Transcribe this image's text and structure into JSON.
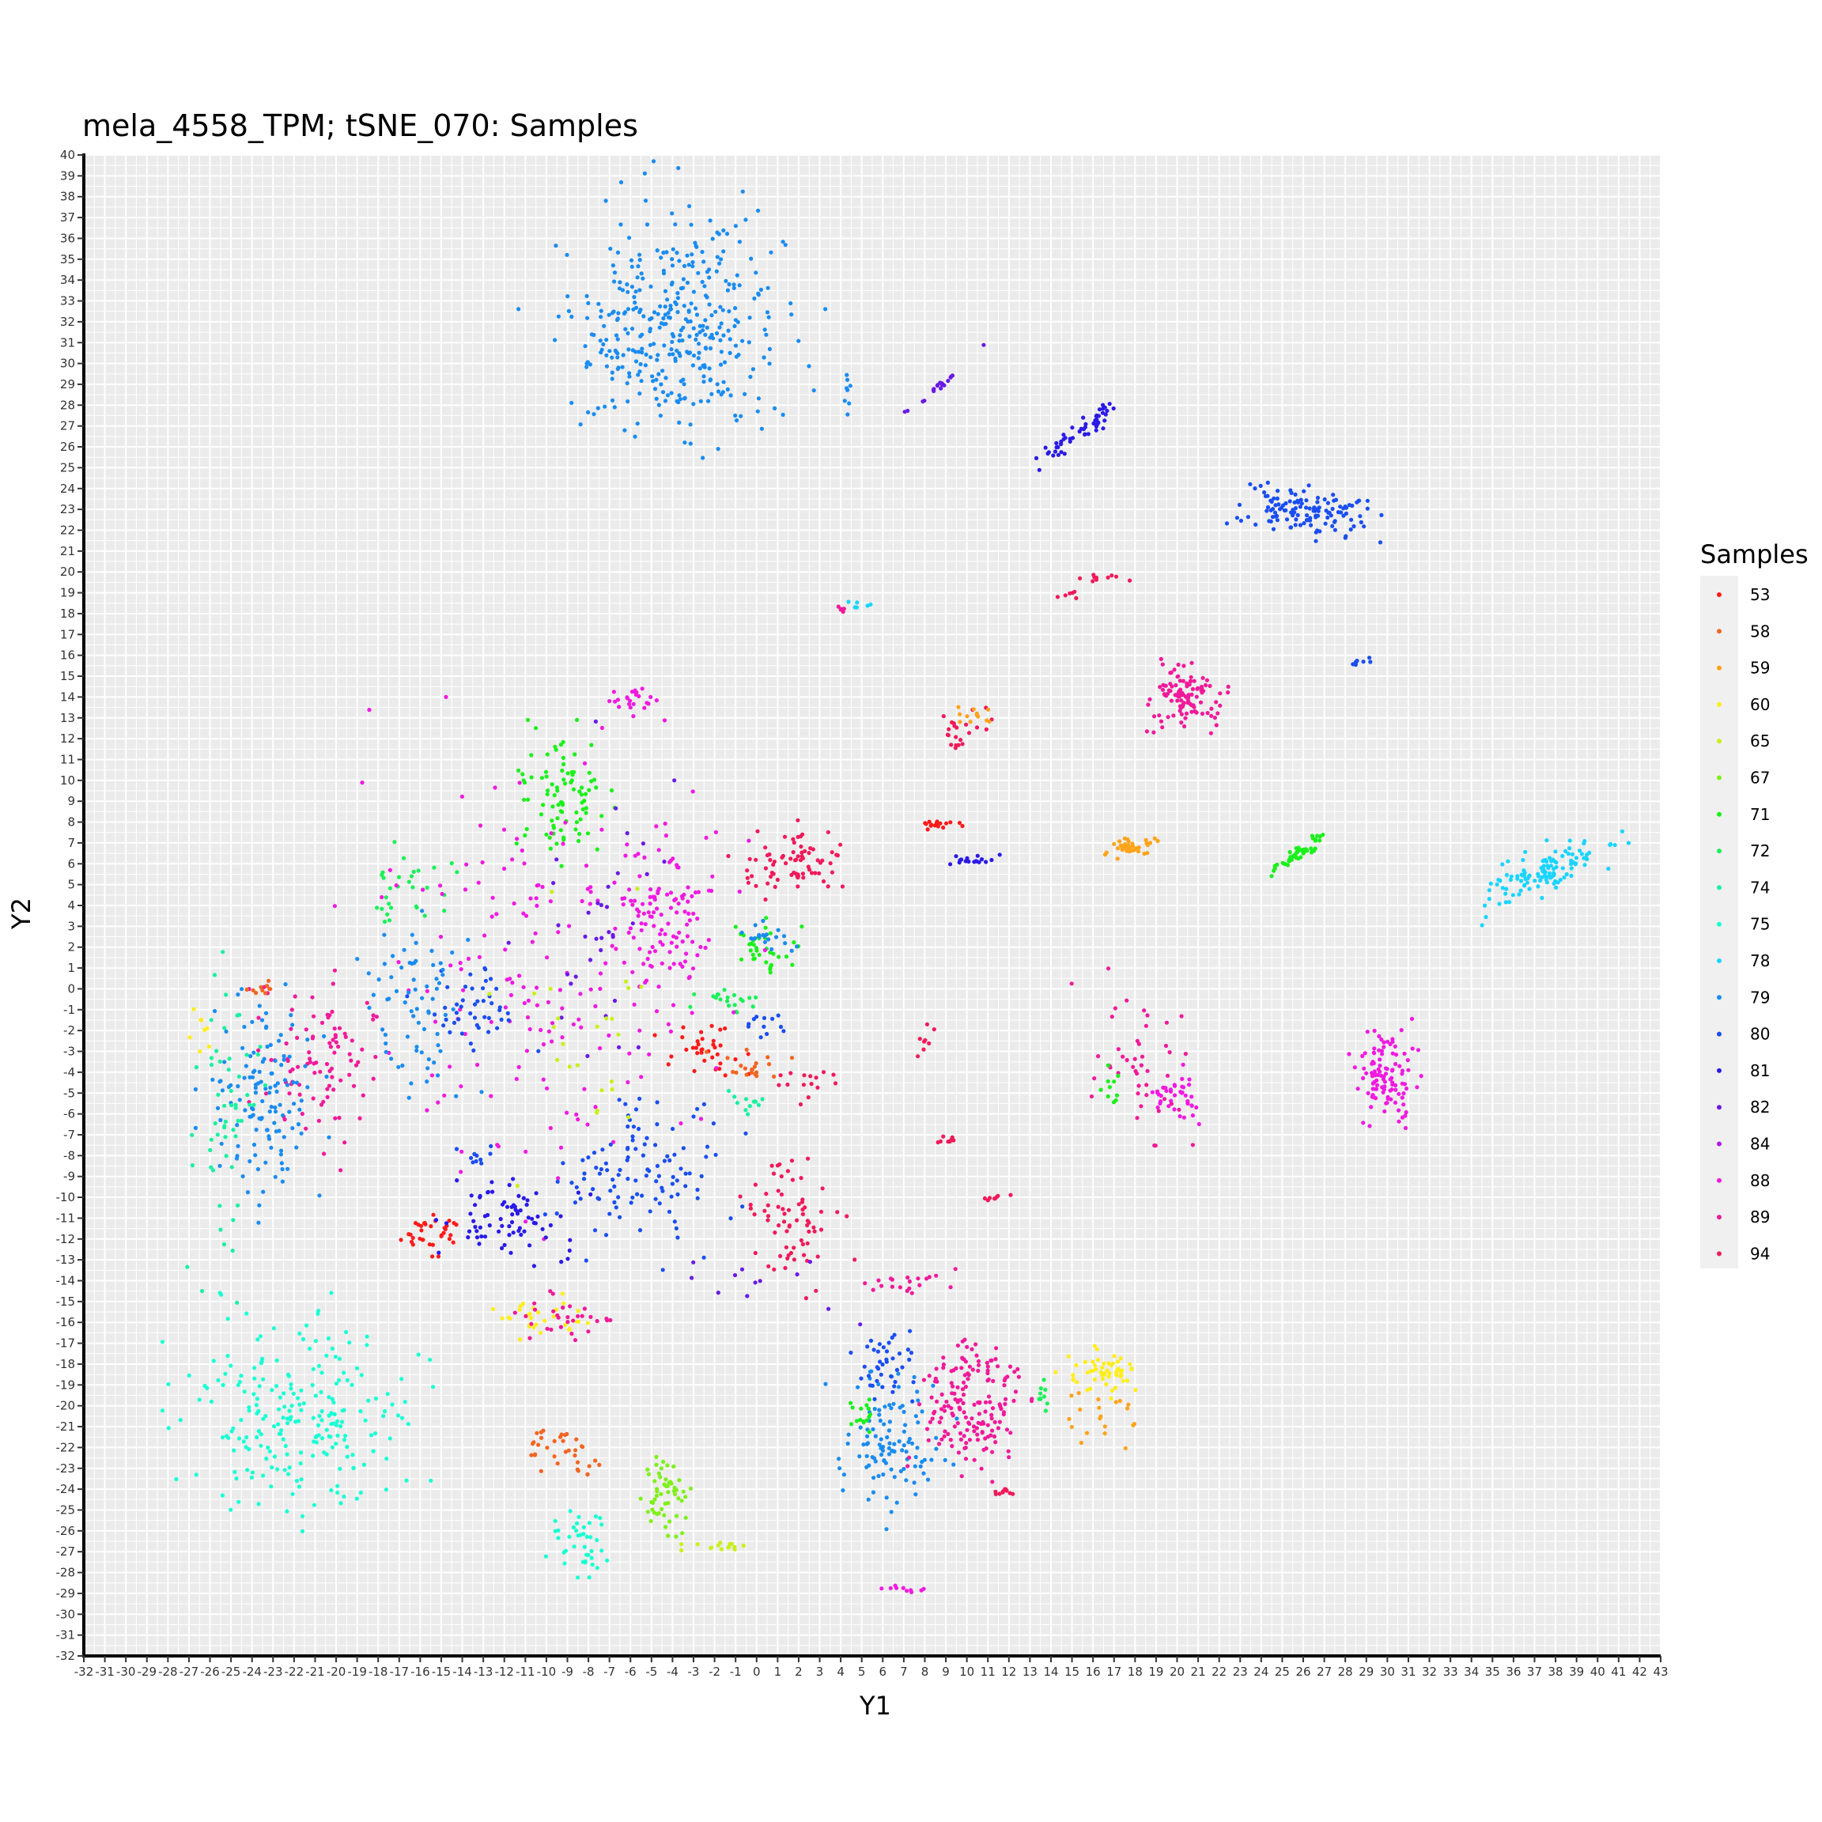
{
  "chart_data": {
    "type": "scatter",
    "title": "mela_4558_TPM; tSNE_070: Samples",
    "xlabel": "Y1",
    "ylabel": "Y2",
    "xlim": [
      -32,
      43
    ],
    "ylim": [
      -32,
      40
    ],
    "xticks": [
      -32,
      -31,
      -30,
      -29,
      -28,
      -27,
      -26,
      -25,
      -24,
      -23,
      -22,
      -21,
      -20,
      -19,
      -18,
      -17,
      -16,
      -15,
      -14,
      -13,
      -12,
      -11,
      -10,
      -9,
      -8,
      -7,
      -6,
      -5,
      -4,
      -3,
      -2,
      -1,
      0,
      1,
      2,
      3,
      4,
      5,
      6,
      7,
      8,
      9,
      10,
      11,
      12,
      13,
      14,
      15,
      16,
      17,
      18,
      19,
      20,
      21,
      22,
      23,
      24,
      25,
      26,
      27,
      28,
      29,
      30,
      31,
      32,
      33,
      34,
      35,
      36,
      37,
      38,
      39,
      40,
      41,
      42,
      43
    ],
    "yticks": [
      -32,
      -31,
      -30,
      -29,
      -28,
      -27,
      -26,
      -25,
      -24,
      -23,
      -22,
      -21,
      -20,
      -19,
      -18,
      -17,
      -16,
      -15,
      -14,
      -13,
      -12,
      -11,
      -10,
      -9,
      -8,
      -7,
      -6,
      -5,
      -4,
      -3,
      -2,
      -1,
      0,
      1,
      2,
      3,
      4,
      5,
      6,
      7,
      8,
      9,
      10,
      11,
      12,
      13,
      14,
      15,
      16,
      17,
      18,
      19,
      20,
      21,
      22,
      23,
      24,
      25,
      26,
      27,
      28,
      29,
      30,
      31,
      32,
      33,
      34,
      35,
      36,
      37,
      38,
      39,
      40
    ],
    "grid": true,
    "legend": {
      "title": "Samples",
      "position": "right",
      "entries": [
        {
          "label": "53",
          "color": "#ff1a1a"
        },
        {
          "label": "58",
          "color": "#f26522"
        },
        {
          "label": "59",
          "color": "#ffa31a"
        },
        {
          "label": "60",
          "color": "#ffee1a"
        },
        {
          "label": "65",
          "color": "#c8f01a"
        },
        {
          "label": "67",
          "color": "#7ff01a"
        },
        {
          "label": "71",
          "color": "#1af01a"
        },
        {
          "label": "72",
          "color": "#1af05a"
        },
        {
          "label": "74",
          "color": "#1af0a0"
        },
        {
          "label": "75",
          "color": "#1affd4"
        },
        {
          "label": "78",
          "color": "#1ad4ff"
        },
        {
          "label": "79",
          "color": "#1a8cf0"
        },
        {
          "label": "80",
          "color": "#1a4ef0"
        },
        {
          "label": "81",
          "color": "#2a1ae6"
        },
        {
          "label": "82",
          "color": "#6a1ae6"
        },
        {
          "label": "84",
          "color": "#b01ae6"
        },
        {
          "label": "88",
          "color": "#f01ae0"
        },
        {
          "label": "89",
          "color": "#f01a9a"
        },
        {
          "label": "94",
          "color": "#f01a5a"
        }
      ]
    },
    "clusters": [
      {
        "series": "79",
        "cx": -4,
        "cy": 32,
        "sx": 2.6,
        "sy": 2.5,
        "n": 380,
        "rot": -0.9
      },
      {
        "series": "79",
        "cx": -8,
        "cy": 30,
        "sx": 0.1,
        "sy": 0.1,
        "n": 4,
        "rot": 0
      },
      {
        "series": "79",
        "cx": 4.3,
        "cy": 28.5,
        "sx": 0.1,
        "sy": 0.6,
        "n": 8,
        "rot": 0
      },
      {
        "series": "82",
        "cx": 8.8,
        "cy": 29,
        "sx": 1.2,
        "sy": 0.12,
        "n": 20,
        "rot": 0.7
      },
      {
        "series": "81",
        "cx": 15.5,
        "cy": 26.8,
        "sx": 1.3,
        "sy": 0.2,
        "n": 55,
        "rot": 0.6
      },
      {
        "series": "80",
        "cx": 26,
        "cy": 23,
        "sx": 1.6,
        "sy": 0.6,
        "n": 130,
        "rot": -0.1
      },
      {
        "series": "94",
        "cx": 16.5,
        "cy": 19.7,
        "sx": 0.5,
        "sy": 0.1,
        "n": 10,
        "rot": 0
      },
      {
        "series": "94",
        "cx": 15,
        "cy": 19,
        "sx": 0.3,
        "sy": 0.1,
        "n": 6,
        "rot": 0
      },
      {
        "series": "89",
        "cx": 4.1,
        "cy": 18.2,
        "sx": 0.1,
        "sy": 0.1,
        "n": 5,
        "rot": 0
      },
      {
        "series": "78",
        "cx": 5,
        "cy": 18.4,
        "sx": 0.5,
        "sy": 0.1,
        "n": 6,
        "rot": 0
      },
      {
        "series": "80",
        "cx": 28.5,
        "cy": 15.6,
        "sx": 0.5,
        "sy": 0.1,
        "n": 8,
        "rot": 0.3
      },
      {
        "series": "89",
        "cx": 20.5,
        "cy": 14,
        "sx": 0.9,
        "sy": 0.7,
        "n": 110,
        "rot": 0
      },
      {
        "series": "94",
        "cx": 9.5,
        "cy": 12.2,
        "sx": 0.7,
        "sy": 0.4,
        "n": 22,
        "rot": 0.3
      },
      {
        "series": "59",
        "cx": 10.3,
        "cy": 13,
        "sx": 0.4,
        "sy": 0.3,
        "n": 12,
        "rot": 0
      },
      {
        "series": "88",
        "cx": -6,
        "cy": 13.8,
        "sx": 0.7,
        "sy": 0.4,
        "n": 25,
        "rot": 0
      },
      {
        "series": "59",
        "cx": 17.8,
        "cy": 6.8,
        "sx": 0.5,
        "sy": 0.3,
        "n": 40,
        "rot": 0
      },
      {
        "series": "71",
        "cx": 25.6,
        "cy": 6.4,
        "sx": 0.8,
        "sy": 0.15,
        "n": 50,
        "rot": 0.6
      },
      {
        "series": "78",
        "cx": 37.5,
        "cy": 5.6,
        "sx": 1.6,
        "sy": 0.5,
        "n": 120,
        "rot": 0.5
      },
      {
        "series": "53",
        "cx": 8.8,
        "cy": 7.9,
        "sx": 0.5,
        "sy": 0.1,
        "n": 18,
        "rot": 0
      },
      {
        "series": "81",
        "cx": 10.3,
        "cy": 6.2,
        "sx": 0.6,
        "sy": 0.1,
        "n": 18,
        "rot": 0.1
      },
      {
        "series": "88",
        "cx": 30,
        "cy": -4.3,
        "sx": 0.7,
        "sy": 1.1,
        "n": 110,
        "rot": 0
      },
      {
        "series": "88",
        "cx": 20,
        "cy": -5.2,
        "sx": 0.6,
        "sy": 0.6,
        "n": 40,
        "rot": 0
      },
      {
        "series": "89",
        "cx": 18.2,
        "cy": -3.5,
        "sx": 1.2,
        "sy": 2.2,
        "n": 45,
        "rot": 0.3
      },
      {
        "series": "71",
        "cx": 17,
        "cy": -4.8,
        "sx": 0.5,
        "sy": 0.6,
        "n": 10,
        "rot": 0
      },
      {
        "series": "94",
        "cx": 9.3,
        "cy": -7.2,
        "sx": 0.3,
        "sy": 0.1,
        "n": 8,
        "rot": 0.3
      },
      {
        "series": "94",
        "cx": 11.3,
        "cy": -10,
        "sx": 0.3,
        "sy": 0.1,
        "n": 8,
        "rot": 0.3
      },
      {
        "series": "94",
        "cx": 1.6,
        "cy": 6.1,
        "sx": 1.2,
        "sy": 0.8,
        "n": 75,
        "rot": 0
      },
      {
        "series": "88",
        "cx": -4.3,
        "cy": 3.2,
        "sx": 1.2,
        "sy": 1.9,
        "n": 110,
        "rot": 0
      },
      {
        "series": "71",
        "cx": -9,
        "cy": 9,
        "sx": 1.2,
        "sy": 1.5,
        "n": 90,
        "rot": 0
      },
      {
        "series": "72",
        "cx": -16.5,
        "cy": 5,
        "sx": 1.2,
        "sy": 0.8,
        "n": 30,
        "rot": 0
      },
      {
        "series": "71",
        "cx": 0.2,
        "cy": 2,
        "sx": 0.8,
        "sy": 0.6,
        "n": 35,
        "rot": 0
      },
      {
        "series": "79",
        "cx": 0.5,
        "cy": 2.3,
        "sx": 0.6,
        "sy": 0.5,
        "n": 20,
        "rot": 0
      },
      {
        "series": "72",
        "cx": -1.5,
        "cy": -0.6,
        "sx": 0.8,
        "sy": 0.4,
        "n": 20,
        "rot": 0
      },
      {
        "series": "53",
        "cx": -2.5,
        "cy": -3,
        "sx": 0.9,
        "sy": 0.6,
        "n": 35,
        "rot": 0
      },
      {
        "series": "58",
        "cx": -0.3,
        "cy": -3.7,
        "sx": 0.8,
        "sy": 0.3,
        "n": 20,
        "rot": 0
      },
      {
        "series": "88",
        "cx": -10,
        "cy": 1,
        "sx": 4,
        "sy": 5,
        "n": 170,
        "rot": 0
      },
      {
        "series": "80",
        "cx": -13.5,
        "cy": -1,
        "sx": 1.2,
        "sy": 1,
        "n": 45,
        "rot": 0
      },
      {
        "series": "79",
        "cx": -16.2,
        "cy": -1,
        "sx": 1.2,
        "sy": 2.5,
        "n": 70,
        "rot": 0
      },
      {
        "series": "89",
        "cx": -20.5,
        "cy": -3.5,
        "sx": 1.4,
        "sy": 2,
        "n": 95,
        "rot": 0
      },
      {
        "series": "79",
        "cx": -23.3,
        "cy": -5.5,
        "sx": 1.3,
        "sy": 2.2,
        "n": 130,
        "rot": 0
      },
      {
        "series": "74",
        "cx": -25,
        "cy": -6.5,
        "sx": 0.8,
        "sy": 3.5,
        "n": 55,
        "rot": 0
      },
      {
        "series": "58",
        "cx": -23.5,
        "cy": 0,
        "sx": 0.5,
        "sy": 0.2,
        "n": 10,
        "rot": 0
      },
      {
        "series": "60",
        "cx": -26.5,
        "cy": -2.2,
        "sx": 0.3,
        "sy": 0.6,
        "n": 8,
        "rot": 0
      },
      {
        "series": "53",
        "cx": -15.5,
        "cy": -11.8,
        "sx": 0.6,
        "sy": 0.4,
        "n": 35,
        "rot": 0
      },
      {
        "series": "81",
        "cx": -11.8,
        "cy": -11,
        "sx": 1.5,
        "sy": 1,
        "n": 75,
        "rot": 0
      },
      {
        "series": "80",
        "cx": -5.5,
        "cy": -8.8,
        "sx": 2,
        "sy": 1.8,
        "n": 110,
        "rot": 0
      },
      {
        "series": "94",
        "cx": 1.8,
        "cy": -11.2,
        "sx": 1.1,
        "sy": 1.4,
        "n": 70,
        "rot": 0
      },
      {
        "series": "94",
        "cx": 2.6,
        "cy": -4.5,
        "sx": 0.8,
        "sy": 0.4,
        "n": 15,
        "rot": 0
      },
      {
        "series": "75",
        "cx": -21.5,
        "cy": -20.3,
        "sx": 2.6,
        "sy": 2.2,
        "n": 230,
        "rot": 0
      },
      {
        "series": "60",
        "cx": -10.3,
        "cy": -15.8,
        "sx": 1.2,
        "sy": 0.5,
        "n": 30,
        "rot": 0
      },
      {
        "series": "89",
        "cx": -9,
        "cy": -15.8,
        "sx": 1.2,
        "sy": 0.5,
        "n": 30,
        "rot": 0
      },
      {
        "series": "58",
        "cx": -9.3,
        "cy": -22.2,
        "sx": 1,
        "sy": 0.5,
        "n": 35,
        "rot": 0
      },
      {
        "series": "75",
        "cx": -8.5,
        "cy": -26.5,
        "sx": 0.9,
        "sy": 0.9,
        "n": 40,
        "rot": 0
      },
      {
        "series": "67",
        "cx": -4.5,
        "cy": -24.5,
        "sx": 0.6,
        "sy": 0.8,
        "n": 55,
        "rot": 0
      },
      {
        "series": "65",
        "cx": -1.5,
        "cy": -26.8,
        "sx": 0.8,
        "sy": 0.1,
        "n": 15,
        "rot": 0
      },
      {
        "series": "79",
        "cx": 6.4,
        "cy": -21.5,
        "sx": 1.2,
        "sy": 1.7,
        "n": 110,
        "rot": 0
      },
      {
        "series": "80",
        "cx": 6.3,
        "cy": -18.4,
        "sx": 0.7,
        "sy": 0.8,
        "n": 40,
        "rot": 0
      },
      {
        "series": "89",
        "cx": 10.3,
        "cy": -20,
        "sx": 1.2,
        "sy": 1.7,
        "n": 170,
        "rot": 0
      },
      {
        "series": "60",
        "cx": 16.3,
        "cy": -18.4,
        "sx": 0.8,
        "sy": 0.5,
        "n": 55,
        "rot": 0
      },
      {
        "series": "59",
        "cx": 17,
        "cy": -20.5,
        "sx": 1.2,
        "sy": 1,
        "n": 20,
        "rot": 0
      },
      {
        "series": "71",
        "cx": 5,
        "cy": -20.5,
        "sx": 0.4,
        "sy": 0.4,
        "n": 15,
        "rot": 0
      },
      {
        "series": "94",
        "cx": 11.7,
        "cy": -24.2,
        "sx": 0.3,
        "sy": 0.1,
        "n": 10,
        "rot": 0
      },
      {
        "series": "89",
        "cx": 7,
        "cy": -14,
        "sx": 1.5,
        "sy": 0.3,
        "n": 20,
        "rot": 0
      },
      {
        "series": "88",
        "cx": 7,
        "cy": -28.8,
        "sx": 0.6,
        "sy": 0.1,
        "n": 10,
        "rot": 0
      },
      {
        "series": "72",
        "cx": 13.6,
        "cy": -19.5,
        "sx": 0.2,
        "sy": 0.6,
        "n": 10,
        "rot": 0
      },
      {
        "series": "82",
        "cx": -7,
        "cy": 3,
        "sx": 2,
        "sy": 4,
        "n": 35,
        "rot": 0
      },
      {
        "series": "65",
        "cx": -9,
        "cy": -3,
        "sx": 2,
        "sy": 3,
        "n": 25,
        "rot": 0
      },
      {
        "series": "74",
        "cx": -0.5,
        "cy": -5.3,
        "sx": 0.6,
        "sy": 0.3,
        "n": 12,
        "rot": 0
      },
      {
        "series": "80",
        "cx": 0.8,
        "cy": -1.7,
        "sx": 0.6,
        "sy": 0.3,
        "n": 12,
        "rot": 0
      },
      {
        "series": "82",
        "cx": 2,
        "cy": -14,
        "sx": 3,
        "sy": 1,
        "n": 12,
        "rot": 0
      },
      {
        "series": "80",
        "cx": -13.4,
        "cy": -8,
        "sx": 0.5,
        "sy": 0.3,
        "n": 10,
        "rot": 0
      },
      {
        "series": "94",
        "cx": 8,
        "cy": -2.5,
        "sx": 0.3,
        "sy": 0.4,
        "n": 8,
        "rot": 0
      }
    ]
  }
}
